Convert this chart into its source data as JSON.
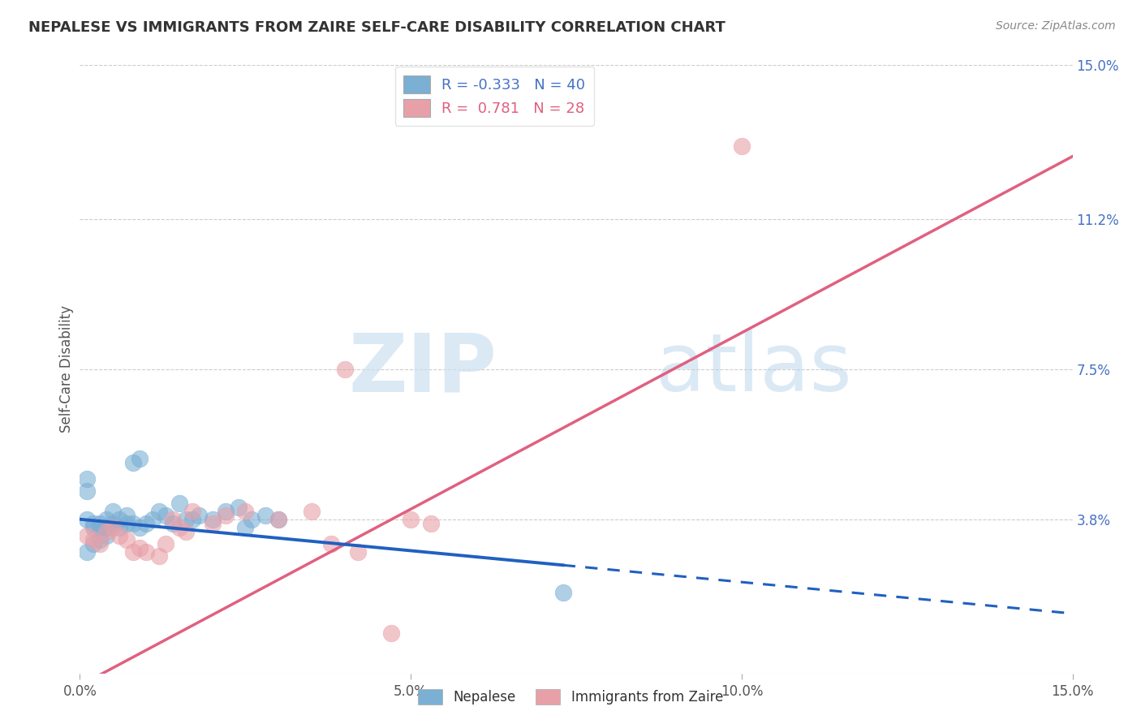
{
  "title": "NEPALESE VS IMMIGRANTS FROM ZAIRE SELF-CARE DISABILITY CORRELATION CHART",
  "source": "Source: ZipAtlas.com",
  "ylabel": "Self-Care Disability",
  "watermark_zip": "ZIP",
  "watermark_atlas": "atlas",
  "xmin": 0.0,
  "xmax": 0.15,
  "ymin": 0.0,
  "ymax": 0.15,
  "ytick_vals": [
    0.0,
    0.038,
    0.075,
    0.112,
    0.15
  ],
  "ytick_labels_right": [
    "",
    "3.8%",
    "7.5%",
    "11.2%",
    "15.0%"
  ],
  "xtick_vals": [
    0.0,
    0.05,
    0.1,
    0.15
  ],
  "xtick_labels": [
    "0.0%",
    "5.0%",
    "10.0%",
    "15.0%"
  ],
  "nepalese_color": "#7bafd4",
  "zaire_color": "#e8a0a8",
  "nepalese_R": -0.333,
  "nepalese_N": 40,
  "zaire_R": 0.781,
  "zaire_N": 28,
  "nepalese_scatter": [
    [
      0.001,
      0.038
    ],
    [
      0.002,
      0.036
    ],
    [
      0.002,
      0.037
    ],
    [
      0.003,
      0.037
    ],
    [
      0.003,
      0.036
    ],
    [
      0.004,
      0.038
    ],
    [
      0.004,
      0.036
    ],
    [
      0.005,
      0.04
    ],
    [
      0.005,
      0.037
    ],
    [
      0.006,
      0.038
    ],
    [
      0.006,
      0.036
    ],
    [
      0.007,
      0.037
    ],
    [
      0.007,
      0.039
    ],
    [
      0.008,
      0.037
    ],
    [
      0.008,
      0.052
    ],
    [
      0.009,
      0.053
    ],
    [
      0.009,
      0.036
    ],
    [
      0.01,
      0.037
    ],
    [
      0.011,
      0.038
    ],
    [
      0.012,
      0.04
    ],
    [
      0.013,
      0.039
    ],
    [
      0.014,
      0.037
    ],
    [
      0.015,
      0.042
    ],
    [
      0.016,
      0.038
    ],
    [
      0.017,
      0.038
    ],
    [
      0.018,
      0.039
    ],
    [
      0.02,
      0.038
    ],
    [
      0.022,
      0.04
    ],
    [
      0.024,
      0.041
    ],
    [
      0.025,
      0.036
    ],
    [
      0.026,
      0.038
    ],
    [
      0.028,
      0.039
    ],
    [
      0.03,
      0.038
    ],
    [
      0.001,
      0.03
    ],
    [
      0.002,
      0.032
    ],
    [
      0.003,
      0.033
    ],
    [
      0.004,
      0.034
    ],
    [
      0.073,
      0.02
    ],
    [
      0.001,
      0.048
    ],
    [
      0.001,
      0.045
    ]
  ],
  "zaire_scatter": [
    [
      0.001,
      0.034
    ],
    [
      0.002,
      0.033
    ],
    [
      0.003,
      0.032
    ],
    [
      0.004,
      0.035
    ],
    [
      0.005,
      0.036
    ],
    [
      0.006,
      0.034
    ],
    [
      0.007,
      0.033
    ],
    [
      0.008,
      0.03
    ],
    [
      0.009,
      0.031
    ],
    [
      0.01,
      0.03
    ],
    [
      0.012,
      0.029
    ],
    [
      0.013,
      0.032
    ],
    [
      0.014,
      0.038
    ],
    [
      0.015,
      0.036
    ],
    [
      0.016,
      0.035
    ],
    [
      0.017,
      0.04
    ],
    [
      0.02,
      0.037
    ],
    [
      0.022,
      0.039
    ],
    [
      0.025,
      0.04
    ],
    [
      0.03,
      0.038
    ],
    [
      0.035,
      0.04
    ],
    [
      0.04,
      0.075
    ],
    [
      0.038,
      0.032
    ],
    [
      0.042,
      0.03
    ],
    [
      0.05,
      0.038
    ],
    [
      0.053,
      0.037
    ],
    [
      0.1,
      0.13
    ],
    [
      0.047,
      0.01
    ]
  ],
  "nepalese_line_color": "#2060c0",
  "zaire_line_color": "#e06080",
  "nepalese_line_solid_end": 0.073,
  "background_color": "#ffffff",
  "grid_color": "#cccccc",
  "legend_nepalese_text_color": "#4472c4",
  "legend_zaire_text_color": "#e06080"
}
